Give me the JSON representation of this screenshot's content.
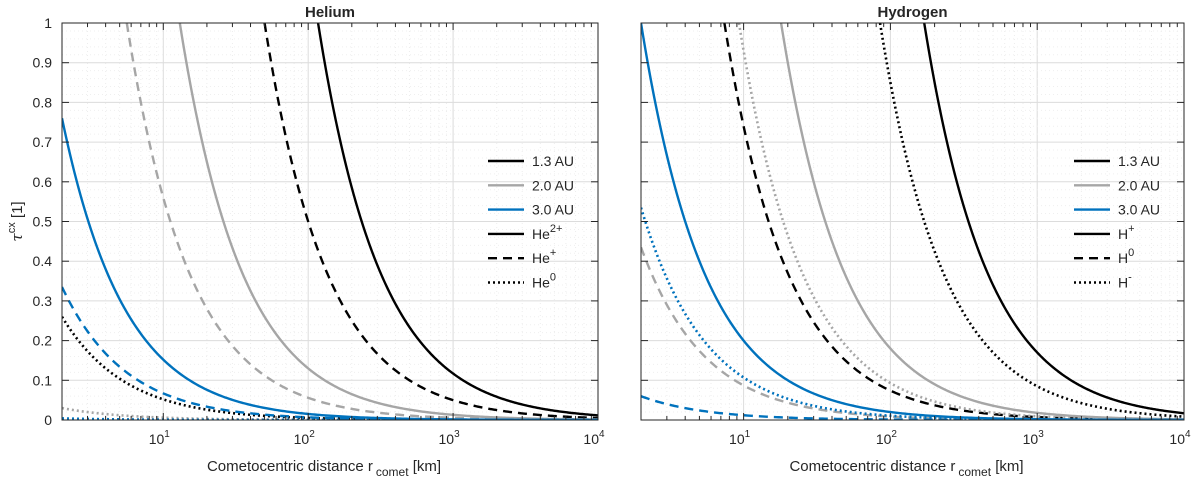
{
  "chart_data": [
    {
      "type": "line",
      "title": "Helium",
      "xlabel": "Cometocentric distance r",
      "xlabel_sub": "comet",
      "xlabel_unit": " [km]",
      "ylabel": "τ",
      "ylabel_sup": "cx",
      "ylabel_unit": " [1]",
      "xscale": "log",
      "xlim": [
        2,
        10000
      ],
      "ylim": [
        0,
        1
      ],
      "grid": true,
      "legend_position": "center-right",
      "x_ticks": [
        {
          "base": "10",
          "exp": "1"
        },
        {
          "base": "10",
          "exp": "2"
        },
        {
          "base": "10",
          "exp": "3"
        },
        {
          "base": "10",
          "exp": "4"
        }
      ],
      "y_ticks": [
        "0",
        "0.1",
        "0.2",
        "0.3",
        "0.4",
        "0.5",
        "0.6",
        "0.7",
        "0.8",
        "0.9",
        "1"
      ],
      "legend": [
        {
          "label": "1.3 AU",
          "sup": "",
          "color": "#000000",
          "style": "solid"
        },
        {
          "label": "2.0 AU",
          "sup": "",
          "color": "#a6a6a6",
          "style": "solid"
        },
        {
          "label": "3.0 AU",
          "sup": "",
          "color": "#0072bd",
          "style": "solid"
        },
        {
          "label": "He",
          "sup": "2+",
          "color": "#000000",
          "style": "solid"
        },
        {
          "label": "He",
          "sup": "+",
          "color": "#000000",
          "style": "dashed"
        },
        {
          "label": "He",
          "sup": "0",
          "color": "#000000",
          "style": "dotted"
        }
      ],
      "series": [
        {
          "name": "1.3 AU He2+",
          "color": "#000000",
          "style": "solid",
          "K": 117
        },
        {
          "name": "1.3 AU He+",
          "color": "#000000",
          "style": "dashed",
          "K": 50
        },
        {
          "name": "1.3 AU He0",
          "color": "#000000",
          "style": "dotted",
          "K": 0.52
        },
        {
          "name": "2.0 AU He2+",
          "color": "#a6a6a6",
          "style": "solid",
          "K": 13
        },
        {
          "name": "2.0 AU He+",
          "color": "#a6a6a6",
          "style": "dashed",
          "K": 5.6
        },
        {
          "name": "2.0 AU He0",
          "color": "#a6a6a6",
          "style": "dotted",
          "K": 0.06
        },
        {
          "name": "3.0 AU He2+",
          "color": "#0072bd",
          "style": "solid",
          "K": 1.52
        },
        {
          "name": "3.0 AU He+",
          "color": "#0072bd",
          "style": "dashed",
          "K": 0.67
        },
        {
          "name": "3.0 AU He0",
          "color": "#0072bd",
          "style": "dotted",
          "K": 0.008
        }
      ]
    },
    {
      "type": "line",
      "title": "Hydrogen",
      "xlabel": "Cometocentric distance r",
      "xlabel_sub": "comet",
      "xlabel_unit": " [km]",
      "xscale": "log",
      "xlim": [
        2,
        10000
      ],
      "ylim": [
        0,
        1
      ],
      "grid": true,
      "legend_position": "center-right",
      "x_ticks": [
        {
          "base": "10",
          "exp": "1"
        },
        {
          "base": "10",
          "exp": "2"
        },
        {
          "base": "10",
          "exp": "3"
        },
        {
          "base": "10",
          "exp": "4"
        }
      ],
      "legend": [
        {
          "label": "1.3 AU",
          "sup": "",
          "color": "#000000",
          "style": "solid"
        },
        {
          "label": "2.0 AU",
          "sup": "",
          "color": "#a6a6a6",
          "style": "solid"
        },
        {
          "label": "3.0 AU",
          "sup": "",
          "color": "#0072bd",
          "style": "solid"
        },
        {
          "label": "H",
          "sup": "+",
          "color": "#000000",
          "style": "solid"
        },
        {
          "label": "H",
          "sup": "0",
          "color": "#000000",
          "style": "dashed"
        },
        {
          "label": "H",
          "sup": "-",
          "color": "#000000",
          "style": "dotted"
        }
      ],
      "series": [
        {
          "name": "1.3 AU H+",
          "color": "#000000",
          "style": "solid",
          "K": 170
        },
        {
          "name": "1.3 AU H0",
          "color": "#000000",
          "style": "dashed",
          "K": 7.4
        },
        {
          "name": "1.3 AU H-",
          "color": "#000000",
          "style": "dotted",
          "K": 85
        },
        {
          "name": "2.0 AU H+",
          "color": "#a6a6a6",
          "style": "solid",
          "K": 18
        },
        {
          "name": "2.0 AU H0",
          "color": "#a6a6a6",
          "style": "dashed",
          "K": 0.87
        },
        {
          "name": "2.0 AU H-",
          "color": "#a6a6a6",
          "style": "dotted",
          "K": 9.3
        },
        {
          "name": "3.0 AU H+",
          "color": "#0072bd",
          "style": "solid",
          "K": 2.0
        },
        {
          "name": "3.0 AU H0",
          "color": "#0072bd",
          "style": "dashed",
          "K": 0.12
        },
        {
          "name": "3.0 AU H-",
          "color": "#0072bd",
          "style": "dotted",
          "K": 1.07
        }
      ]
    }
  ]
}
